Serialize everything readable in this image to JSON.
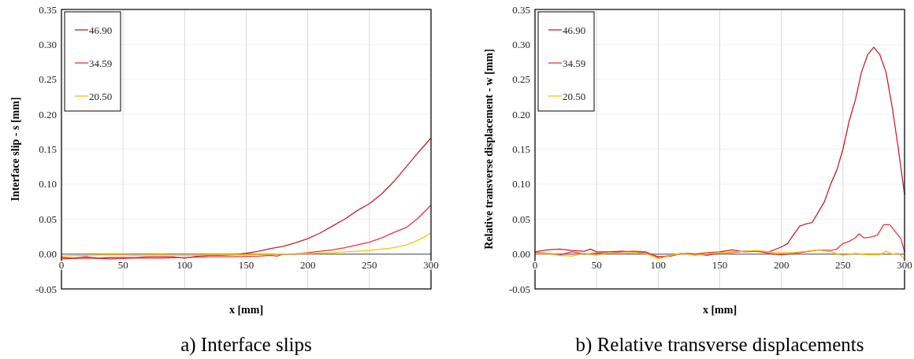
{
  "chart_data": [
    {
      "type": "line",
      "title": "a) Interface slips",
      "xlabel": "x [mm]",
      "ylabel": "Interface slip - s [mm]",
      "xlim": [
        0,
        300
      ],
      "xticks": [
        0,
        50,
        100,
        150,
        200,
        250,
        300
      ],
      "ylim": [
        -0.05,
        0.35
      ],
      "yticks": [
        {
          "value": -0.05,
          "label": "-0.05"
        },
        {
          "value": 0,
          "label": "0.00"
        },
        {
          "value": 0.05,
          "label": "0.05"
        },
        {
          "value": 0.1,
          "label": "0.10"
        },
        {
          "value": 0.15,
          "label": "0.15"
        },
        {
          "value": 0.2,
          "label": "0.20"
        },
        {
          "value": 0.25,
          "label": "0.25"
        },
        {
          "value": 0.3,
          "label": "0.30"
        },
        {
          "value": 0.35,
          "label": "0.35"
        }
      ],
      "grid": true,
      "legend": "top left",
      "series": [
        {
          "name": "46.90",
          "color": "#c8202c",
          "x": [
            0,
            10,
            20,
            30,
            40,
            50,
            60,
            70,
            80,
            90,
            100,
            110,
            120,
            130,
            140,
            150,
            160,
            170,
            180,
            190,
            200,
            210,
            220,
            230,
            240,
            250,
            260,
            270,
            280,
            290,
            300
          ],
          "values": [
            -0.005,
            -0.006,
            -0.004,
            -0.006,
            -0.005,
            -0.005,
            -0.005,
            -0.004,
            -0.004,
            -0.004,
            -0.006,
            -0.003,
            -0.002,
            -0.002,
            -0.001,
            0.001,
            0.004,
            0.008,
            0.011,
            0.016,
            0.022,
            0.03,
            0.04,
            0.05,
            0.062,
            0.072,
            0.086,
            0.104,
            0.125,
            0.146,
            0.166
          ]
        },
        {
          "name": "34.59",
          "color": "#ee3340",
          "x": [
            0,
            20,
            40,
            60,
            80,
            100,
            120,
            140,
            160,
            170,
            175,
            180,
            190,
            200,
            210,
            220,
            230,
            240,
            250,
            260,
            270,
            280,
            290,
            300
          ],
          "values": [
            -0.007,
            -0.006,
            -0.007,
            -0.006,
            -0.006,
            -0.005,
            -0.004,
            -0.004,
            -0.003,
            -0.002,
            -0.003,
            0,
            0,
            0.002,
            0.004,
            0.006,
            0.009,
            0.013,
            0.017,
            0.023,
            0.031,
            0.038,
            0.052,
            0.07
          ]
        },
        {
          "name": "20.50",
          "color": "#ffc000",
          "x": [
            0,
            20,
            40,
            60,
            80,
            100,
            120,
            140,
            160,
            180,
            200,
            220,
            240,
            250,
            260,
            270,
            280,
            290,
            300
          ],
          "values": [
            -0.003,
            -0.002,
            -0.001,
            -0.002,
            -0.001,
            -0.002,
            -0.001,
            -0.001,
            -0.001,
            0,
            0.001,
            0.002,
            0.004,
            0.005,
            0.007,
            0.009,
            0.013,
            0.02,
            0.03
          ]
        }
      ]
    },
    {
      "type": "line",
      "title": "b) Relative transverse displacements",
      "xlabel": "x [mm]",
      "ylabel": "Relative transverse displacement - w [mm]",
      "xlim": [
        0,
        300
      ],
      "xticks": [
        0,
        50,
        100,
        150,
        200,
        250,
        300
      ],
      "ylim": [
        -0.05,
        0.35
      ],
      "yticks": [
        {
          "value": -0.05,
          "label": "-0.05"
        },
        {
          "value": 0,
          "label": "0.00"
        },
        {
          "value": 0.05,
          "label": "0.05"
        },
        {
          "value": 0.1,
          "label": "0.10"
        },
        {
          "value": 0.15,
          "label": "0.15"
        },
        {
          "value": 0.2,
          "label": "0.20"
        },
        {
          "value": 0.25,
          "label": "0.25"
        },
        {
          "value": 0.3,
          "label": "0.30"
        },
        {
          "value": 0.35,
          "label": "0.35"
        }
      ],
      "grid": true,
      "legend": "top left",
      "series": [
        {
          "name": "46.90",
          "color": "#c8202c",
          "x": [
            0,
            10,
            20,
            30,
            40,
            45,
            50,
            60,
            70,
            80,
            90,
            100,
            110,
            120,
            130,
            140,
            150,
            160,
            170,
            180,
            190,
            200,
            205,
            210,
            215,
            220,
            225,
            230,
            235,
            240,
            245,
            250,
            255,
            260,
            265,
            270,
            275,
            280,
            285,
            290,
            295,
            300
          ],
          "values": [
            0.003,
            0.006,
            0.007,
            0.005,
            0.004,
            0.007,
            0.003,
            0.003,
            0.004,
            0.003,
            0.002,
            -0.004,
            -0.003,
            0.001,
            0,
            0.002,
            0.003,
            0.006,
            0.003,
            0.004,
            0.003,
            0.01,
            0.015,
            0.028,
            0.04,
            0.043,
            0.045,
            0.06,
            0.075,
            0.1,
            0.12,
            0.15,
            0.19,
            0.22,
            0.26,
            0.285,
            0.296,
            0.285,
            0.26,
            0.21,
            0.15,
            0.085
          ]
        },
        {
          "name": "34.59",
          "color": "#ee3340",
          "x": [
            0,
            10,
            20,
            30,
            40,
            50,
            60,
            70,
            80,
            90,
            100,
            110,
            120,
            130,
            140,
            150,
            160,
            170,
            180,
            190,
            200,
            210,
            220,
            230,
            240,
            245,
            250,
            255,
            260,
            263,
            267,
            272,
            278,
            283,
            288,
            292,
            297,
            300
          ],
          "values": [
            0.002,
            0.001,
            -0.001,
            0.003,
            0,
            0.001,
            0.002,
            0.003,
            0.004,
            0.003,
            -0.005,
            -0.002,
            0.001,
            0,
            -0.002,
            0.002,
            0.002,
            0.004,
            0.004,
            0.001,
            -0.001,
            0.001,
            0.003,
            0.006,
            0.005,
            0.007,
            0.015,
            0.018,
            0.023,
            0.029,
            0.023,
            0.024,
            0.027,
            0.042,
            0.042,
            0.033,
            0.022,
            0.003
          ]
        },
        {
          "name": "20.50",
          "color": "#ffc000",
          "x": [
            0,
            10,
            20,
            30,
            40,
            50,
            60,
            70,
            80,
            90,
            100,
            110,
            120,
            130,
            140,
            150,
            160,
            170,
            180,
            190,
            200,
            210,
            220,
            230,
            240,
            250,
            260,
            270,
            280,
            285,
            290,
            295,
            300
          ],
          "values": [
            0,
            0.001,
            -0.002,
            -0.003,
            0.001,
            -0.002,
            0.002,
            0.001,
            0.002,
            0.001,
            -0.007,
            -0.002,
            0.001,
            -0.002,
            0.001,
            0.002,
            0.003,
            0.004,
            0.005,
            0.003,
            0.002,
            0.002,
            0.004,
            0.006,
            0.003,
            -0.002,
            0.001,
            -0.001,
            -0.001,
            0.004,
            0,
            0.001,
            -0.007
          ]
        }
      ]
    }
  ]
}
